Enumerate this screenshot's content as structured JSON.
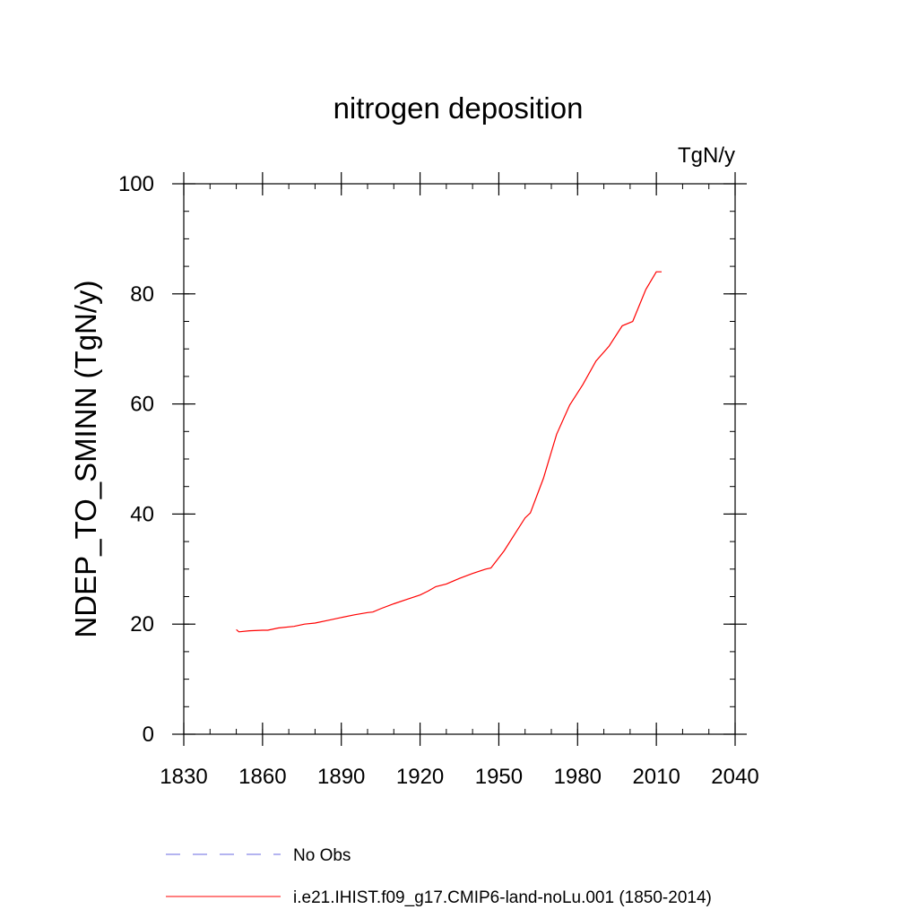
{
  "chart_data": {
    "type": "line",
    "title": "nitrogen deposition",
    "units_label": "TgN/y",
    "ylabel": "NDEP_TO_SMINN  (TgN/y)",
    "xlabel": "",
    "xlim": [
      1830,
      2040
    ],
    "ylim": [
      0,
      100
    ],
    "xticks": [
      1830,
      1860,
      1890,
      1920,
      1950,
      1980,
      2010,
      2040
    ],
    "yticks": [
      0,
      20,
      40,
      60,
      80,
      100
    ],
    "x_minor_step": 10,
    "y_minor_step": 5,
    "grid": false,
    "legend_position": "bottom",
    "series": [
      {
        "name": "No Obs",
        "color": "#6a6ae0",
        "dash": "dashed",
        "x": [],
        "y": []
      },
      {
        "name": "i.e21.IHIST.f09_g17.CMIP6-land-noLu.001 (1850-2014)",
        "color": "#ff0000",
        "dash": "solid",
        "x": [
          1850,
          1851,
          1855,
          1860,
          1862,
          1866,
          1872,
          1876,
          1880,
          1885,
          1890,
          1895,
          1900,
          1902,
          1905,
          1910,
          1915,
          1920,
          1923,
          1926,
          1930,
          1935,
          1940,
          1945,
          1947,
          1952,
          1956,
          1960,
          1962,
          1967,
          1972,
          1977,
          1982,
          1987,
          1992,
          1997,
          2001,
          2006,
          2010,
          2012
        ],
        "y": [
          19.0,
          18.6,
          18.8,
          18.9,
          18.9,
          19.3,
          19.6,
          20.0,
          20.2,
          20.7,
          21.2,
          21.7,
          22.1,
          22.2,
          22.8,
          23.7,
          24.5,
          25.3,
          26.0,
          26.8,
          27.3,
          28.3,
          29.2,
          30.0,
          30.2,
          33.3,
          36.3,
          39.3,
          40.2,
          46.5,
          54.5,
          59.8,
          63.5,
          67.8,
          70.5,
          74.2,
          75.0,
          80.8,
          84.0,
          84.0
        ]
      }
    ]
  }
}
